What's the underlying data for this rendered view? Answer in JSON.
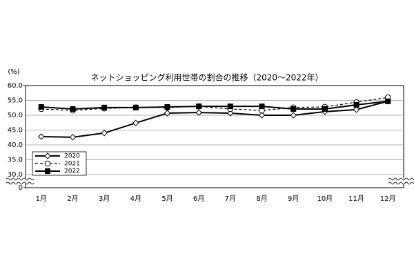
{
  "chart_data": {
    "type": "line",
    "title": "ネットショッピング利用世帯の割合の推移（2020～2022年）",
    "y_unit_label": "(%)",
    "categories": [
      "1月",
      "2月",
      "3月",
      "4月",
      "5月",
      "6月",
      "7月",
      "8月",
      "9月",
      "10月",
      "11月",
      "12月"
    ],
    "series": [
      {
        "name": "2020",
        "color": "#000000",
        "marker": "diamond",
        "line_style": "solid",
        "values": [
          42.8,
          42.6,
          44.0,
          47.4,
          50.7,
          50.9,
          50.7,
          50.0,
          50.0,
          51.2,
          51.9,
          54.7
        ]
      },
      {
        "name": "2021",
        "color": "#000000",
        "marker": "circle",
        "line_style": "dashed",
        "values": [
          52.1,
          51.6,
          52.3,
          52.6,
          52.6,
          53.0,
          52.1,
          51.6,
          52.6,
          52.8,
          54.4,
          56.0
        ]
      },
      {
        "name": "2022",
        "color": "#000000",
        "marker": "square",
        "line_style": "solid",
        "values": [
          52.8,
          52.1,
          52.6,
          52.6,
          52.8,
          53.0,
          53.0,
          53.0,
          52.1,
          52.1,
          53.5,
          54.7
        ]
      }
    ],
    "ylim": [
      30,
      60
    ],
    "yticks": [
      {
        "value": 60,
        "label": "60.0"
      },
      {
        "value": 55,
        "label": "55.0"
      },
      {
        "value": 50,
        "label": "50.0"
      },
      {
        "value": 45,
        "label": "45.0"
      },
      {
        "value": 40,
        "label": "40.0"
      },
      {
        "value": 35,
        "label": "35.0"
      },
      {
        "value": 30,
        "label": "30.0"
      },
      0
    ],
    "axis_break": true,
    "grid": true,
    "legend_position": "lower-left"
  }
}
